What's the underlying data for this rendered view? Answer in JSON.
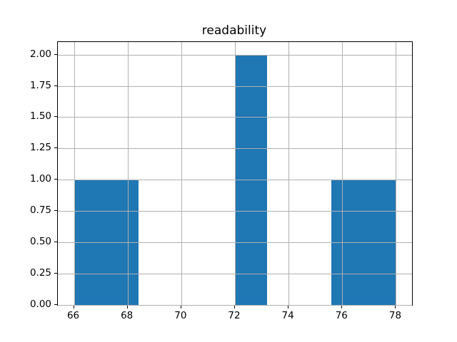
{
  "chart_data": {
    "type": "bar",
    "subtype": "histogram",
    "title": "readability",
    "xlabel": "",
    "ylabel": "",
    "bin_edges": [
      66.0,
      67.2,
      68.4,
      69.6,
      70.8,
      72.0,
      73.2,
      74.4,
      75.6,
      76.8,
      78.0
    ],
    "counts": [
      1,
      1,
      0,
      0,
      0,
      2,
      0,
      0,
      1,
      1
    ],
    "xlim": [
      65.4,
      78.6
    ],
    "ylim": [
      0,
      2.1
    ],
    "x_ticks": [
      66,
      68,
      70,
      72,
      74,
      76,
      78
    ],
    "x_tick_labels": [
      "66",
      "68",
      "70",
      "72",
      "74",
      "76",
      "78"
    ],
    "y_ticks": [
      0.0,
      0.25,
      0.5,
      0.75,
      1.0,
      1.25,
      1.5,
      1.75,
      2.0
    ],
    "y_tick_labels": [
      "0.00",
      "0.25",
      "0.50",
      "0.75",
      "1.00",
      "1.25",
      "1.50",
      "1.75",
      "2.00"
    ],
    "grid": true,
    "grid_over_bars": true,
    "legend_visible": false,
    "bar_color": "#1f77b4",
    "grid_color": "#b0b0b0",
    "spine_color": "#000000",
    "background_color": "#ffffff"
  }
}
